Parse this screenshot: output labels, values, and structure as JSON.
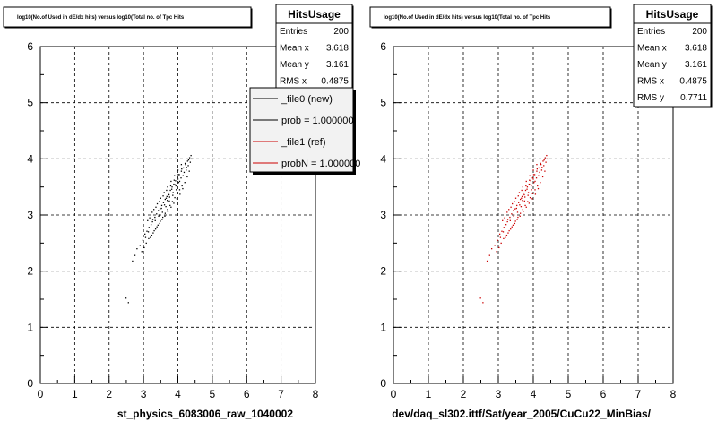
{
  "chart_data": [
    {
      "type": "scatter",
      "title": "log10(No.of Used in dE/dx hits) versus log10(Total no. of Tpc Hits",
      "xlabel": "st_physics_6083006_raw_1040002",
      "ylabel": "",
      "xlim": [
        0,
        8
      ],
      "ylim": [
        0,
        6
      ],
      "x_ticks": [
        "0",
        "1",
        "2",
        "3",
        "4",
        "5",
        "6",
        "7",
        "8"
      ],
      "y_ticks": [
        "0",
        "1",
        "2",
        "3",
        "4",
        "5",
        "6"
      ],
      "grid": true,
      "point_color": "#000000",
      "stats": {
        "name": "HitsUsage",
        "rows": [
          {
            "label": "Entries",
            "value": "200"
          },
          {
            "label": "Mean x",
            "value": "3.618"
          },
          {
            "label": "Mean y",
            "value": "3.161"
          },
          {
            "label": "RMS x",
            "value": "0.4875"
          }
        ]
      },
      "legend": {
        "placement": "top-right",
        "entries": [
          {
            "label": "_file0 (new)",
            "color": "#000000"
          },
          {
            "label": "prob = 1.000000",
            "color": "#000000"
          },
          {
            "label": "_file1 (ref)",
            "color": "#cc0000"
          },
          {
            "label": "probN = 1.000000",
            "color": "#cc0000"
          }
        ]
      },
      "points": [
        [
          2.49,
          1.52
        ],
        [
          2.56,
          1.44
        ],
        [
          2.68,
          2.18
        ],
        [
          2.75,
          2.28
        ],
        [
          2.81,
          2.4
        ],
        [
          2.9,
          2.46
        ],
        [
          2.98,
          2.55
        ],
        [
          3.04,
          2.66
        ],
        [
          3.1,
          2.71
        ],
        [
          3.16,
          2.78
        ],
        [
          3.22,
          2.83
        ],
        [
          3.27,
          2.92
        ],
        [
          3.33,
          2.96
        ],
        [
          3.38,
          3.02
        ],
        [
          3.43,
          3.08
        ],
        [
          3.48,
          3.11
        ],
        [
          3.53,
          3.17
        ],
        [
          3.58,
          3.22
        ],
        [
          3.63,
          3.28
        ],
        [
          3.68,
          3.33
        ],
        [
          3.73,
          3.39
        ],
        [
          3.78,
          3.44
        ],
        [
          3.83,
          3.5
        ],
        [
          3.88,
          3.55
        ],
        [
          3.93,
          3.61
        ],
        [
          3.98,
          3.66
        ],
        [
          4.04,
          3.72
        ],
        [
          4.1,
          3.78
        ],
        [
          4.16,
          3.84
        ],
        [
          4.22,
          3.9
        ],
        [
          4.28,
          3.96
        ],
        [
          4.34,
          4.02
        ],
        [
          4.38,
          4.06
        ],
        [
          3.2,
          2.6
        ],
        [
          3.28,
          2.68
        ],
        [
          3.35,
          2.75
        ],
        [
          3.42,
          2.82
        ],
        [
          3.49,
          2.89
        ],
        [
          3.56,
          2.96
        ],
        [
          3.63,
          3.03
        ],
        [
          3.7,
          3.1
        ],
        [
          3.77,
          3.17
        ],
        [
          3.84,
          3.24
        ],
        [
          3.91,
          3.31
        ],
        [
          3.98,
          3.38
        ],
        [
          4.05,
          3.45
        ],
        [
          4.12,
          3.52
        ],
        [
          3.4,
          3.2
        ],
        [
          3.5,
          3.3
        ],
        [
          3.6,
          3.4
        ],
        [
          3.7,
          3.5
        ],
        [
          3.8,
          3.6
        ],
        [
          3.9,
          3.7
        ],
        [
          4.0,
          3.8
        ],
        [
          4.1,
          3.9
        ],
        [
          3.3,
          3.1
        ],
        [
          3.45,
          3.0
        ],
        [
          3.55,
          3.05
        ],
        [
          3.65,
          3.15
        ],
        [
          3.75,
          3.25
        ],
        [
          3.85,
          3.35
        ],
        [
          3.95,
          3.45
        ],
        [
          4.05,
          3.6
        ],
        [
          4.15,
          3.7
        ],
        [
          4.25,
          3.85
        ],
        [
          3.12,
          2.9
        ],
        [
          3.18,
          2.95
        ],
        [
          3.25,
          3.05
        ],
        [
          3.36,
          3.14
        ],
        [
          3.46,
          3.24
        ],
        [
          3.57,
          3.34
        ],
        [
          3.67,
          3.44
        ],
        [
          3.79,
          3.52
        ],
        [
          3.89,
          3.62
        ],
        [
          4.01,
          3.72
        ],
        [
          4.11,
          3.82
        ],
        [
          4.21,
          3.92
        ],
        [
          4.31,
          3.98
        ],
        [
          3.08,
          2.5
        ],
        [
          3.15,
          2.58
        ],
        [
          3.24,
          2.64
        ],
        [
          3.31,
          2.72
        ],
        [
          3.39,
          2.79
        ],
        [
          3.47,
          2.85
        ],
        [
          3.54,
          2.92
        ],
        [
          3.62,
          2.98
        ],
        [
          3.71,
          3.06
        ],
        [
          3.8,
          3.14
        ],
        [
          3.88,
          3.21
        ],
        [
          3.97,
          3.29
        ],
        [
          4.06,
          3.37
        ],
        [
          4.14,
          3.47
        ],
        [
          4.2,
          3.58
        ],
        [
          4.27,
          3.68
        ],
        [
          4.33,
          3.78
        ],
        [
          2.95,
          2.35
        ],
        [
          3.02,
          2.42
        ],
        [
          3.06,
          2.6
        ],
        [
          3.14,
          2.7
        ],
        [
          3.26,
          2.88
        ],
        [
          3.34,
          2.9
        ],
        [
          3.44,
          2.98
        ],
        [
          3.52,
          3.12
        ],
        [
          3.61,
          3.18
        ],
        [
          3.69,
          3.26
        ],
        [
          3.76,
          3.32
        ],
        [
          3.86,
          3.4
        ],
        [
          3.94,
          3.52
        ],
        [
          4.02,
          3.58
        ],
        [
          4.09,
          3.66
        ],
        [
          4.18,
          3.76
        ],
        [
          4.24,
          3.8
        ],
        [
          4.3,
          3.88
        ],
        [
          4.36,
          3.94
        ],
        [
          4.4,
          4.0
        ],
        [
          3.66,
          3.3
        ],
        [
          3.74,
          3.36
        ],
        [
          3.82,
          3.46
        ],
        [
          3.92,
          3.54
        ],
        [
          4.0,
          3.64
        ]
      ]
    },
    {
      "type": "scatter",
      "title": "log10(No.of Used in dE/dx hits) versus log10(Total no. of Tpc Hits",
      "xlabel": "dev/daq_sl302.ittf/Sat/year_2005/CuCu22_MinBias/",
      "ylabel": "",
      "xlim": [
        0,
        8
      ],
      "ylim": [
        0,
        6
      ],
      "x_ticks": [
        "0",
        "1",
        "2",
        "3",
        "4",
        "5",
        "6",
        "7",
        "8"
      ],
      "y_ticks": [
        "0",
        "1",
        "2",
        "3",
        "4",
        "5",
        "6"
      ],
      "grid": true,
      "point_color": "#cc0000",
      "stats": {
        "name": "HitsUsage",
        "rows": [
          {
            "label": "Entries",
            "value": "200"
          },
          {
            "label": "Mean x",
            "value": "3.618"
          },
          {
            "label": "Mean y",
            "value": "3.161"
          },
          {
            "label": "RMS x",
            "value": "0.4875"
          },
          {
            "label": "RMS y",
            "value": "0.7711"
          }
        ]
      },
      "points": [
        [
          2.49,
          1.52
        ],
        [
          2.56,
          1.44
        ],
        [
          2.68,
          2.18
        ],
        [
          2.75,
          2.28
        ],
        [
          2.81,
          2.4
        ],
        [
          2.9,
          2.46
        ],
        [
          2.98,
          2.55
        ],
        [
          3.04,
          2.66
        ],
        [
          3.1,
          2.71
        ],
        [
          3.16,
          2.78
        ],
        [
          3.22,
          2.83
        ],
        [
          3.27,
          2.92
        ],
        [
          3.33,
          2.96
        ],
        [
          3.38,
          3.02
        ],
        [
          3.43,
          3.08
        ],
        [
          3.48,
          3.11
        ],
        [
          3.53,
          3.17
        ],
        [
          3.58,
          3.22
        ],
        [
          3.63,
          3.28
        ],
        [
          3.68,
          3.33
        ],
        [
          3.73,
          3.39
        ],
        [
          3.78,
          3.44
        ],
        [
          3.83,
          3.5
        ],
        [
          3.88,
          3.55
        ],
        [
          3.93,
          3.61
        ],
        [
          3.98,
          3.66
        ],
        [
          4.04,
          3.72
        ],
        [
          4.1,
          3.78
        ],
        [
          4.16,
          3.84
        ],
        [
          4.22,
          3.9
        ],
        [
          4.28,
          3.96
        ],
        [
          4.34,
          4.02
        ],
        [
          4.38,
          4.06
        ],
        [
          3.2,
          2.6
        ],
        [
          3.28,
          2.68
        ],
        [
          3.35,
          2.75
        ],
        [
          3.42,
          2.82
        ],
        [
          3.49,
          2.89
        ],
        [
          3.56,
          2.96
        ],
        [
          3.63,
          3.03
        ],
        [
          3.7,
          3.1
        ],
        [
          3.77,
          3.17
        ],
        [
          3.84,
          3.24
        ],
        [
          3.91,
          3.31
        ],
        [
          3.98,
          3.38
        ],
        [
          4.05,
          3.45
        ],
        [
          4.12,
          3.52
        ],
        [
          3.4,
          3.2
        ],
        [
          3.5,
          3.3
        ],
        [
          3.6,
          3.4
        ],
        [
          3.7,
          3.5
        ],
        [
          3.8,
          3.6
        ],
        [
          3.9,
          3.7
        ],
        [
          4.0,
          3.8
        ],
        [
          4.1,
          3.9
        ],
        [
          3.3,
          3.1
        ],
        [
          3.45,
          3.0
        ],
        [
          3.55,
          3.05
        ],
        [
          3.65,
          3.15
        ],
        [
          3.75,
          3.25
        ],
        [
          3.85,
          3.35
        ],
        [
          3.95,
          3.45
        ],
        [
          4.05,
          3.6
        ],
        [
          4.15,
          3.7
        ],
        [
          4.25,
          3.85
        ],
        [
          3.12,
          2.9
        ],
        [
          3.18,
          2.95
        ],
        [
          3.25,
          3.05
        ],
        [
          3.36,
          3.14
        ],
        [
          3.46,
          3.24
        ],
        [
          3.57,
          3.34
        ],
        [
          3.67,
          3.44
        ],
        [
          3.79,
          3.52
        ],
        [
          3.89,
          3.62
        ],
        [
          4.01,
          3.72
        ],
        [
          4.11,
          3.82
        ],
        [
          4.21,
          3.92
        ],
        [
          4.31,
          3.98
        ],
        [
          3.08,
          2.5
        ],
        [
          3.15,
          2.58
        ],
        [
          3.24,
          2.64
        ],
        [
          3.31,
          2.72
        ],
        [
          3.39,
          2.79
        ],
        [
          3.47,
          2.85
        ],
        [
          3.54,
          2.92
        ],
        [
          3.62,
          2.98
        ],
        [
          3.71,
          3.06
        ],
        [
          3.8,
          3.14
        ],
        [
          3.88,
          3.21
        ],
        [
          3.97,
          3.29
        ],
        [
          4.06,
          3.37
        ],
        [
          4.14,
          3.47
        ],
        [
          4.2,
          3.58
        ],
        [
          4.27,
          3.68
        ],
        [
          4.33,
          3.78
        ],
        [
          2.95,
          2.35
        ],
        [
          3.02,
          2.42
        ],
        [
          3.06,
          2.6
        ],
        [
          3.14,
          2.7
        ],
        [
          3.26,
          2.88
        ],
        [
          3.34,
          2.9
        ],
        [
          3.44,
          2.98
        ],
        [
          3.52,
          3.12
        ],
        [
          3.61,
          3.18
        ],
        [
          3.69,
          3.26
        ],
        [
          3.76,
          3.32
        ],
        [
          3.86,
          3.4
        ],
        [
          3.94,
          3.52
        ],
        [
          4.02,
          3.58
        ],
        [
          4.09,
          3.66
        ],
        [
          4.18,
          3.76
        ],
        [
          4.24,
          3.8
        ],
        [
          4.3,
          3.88
        ],
        [
          4.36,
          3.94
        ],
        [
          4.4,
          4.0
        ],
        [
          3.66,
          3.3
        ],
        [
          3.74,
          3.36
        ],
        [
          3.82,
          3.46
        ],
        [
          3.92,
          3.54
        ],
        [
          4.0,
          3.64
        ]
      ]
    }
  ]
}
